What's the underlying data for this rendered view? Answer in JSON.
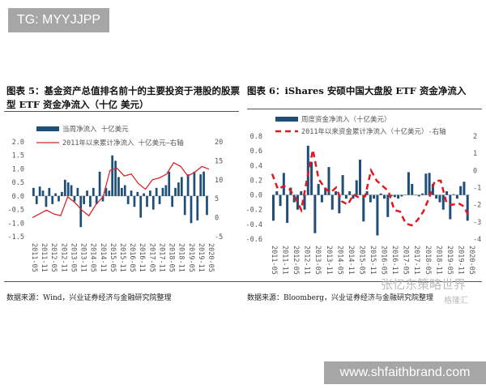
{
  "tag": "TG: MYYJJPP",
  "watermark_site": "www.shfaithbrand.com",
  "watermark_wechat": "张忆东策略世界",
  "watermark_logo": "格隆汇",
  "left": {
    "title": "图表 5：基金资产总值排名前十的主要投资于港股的股票型 ETF 资金净流入（十亿 美元）",
    "source": "数据来源：Wind，兴业证券经济与金融研究院整理"
  },
  "right": {
    "title": "图表 6：iShares 安硕中国大盘股 ETF 资金净流入",
    "source": "数据来源：Bloomberg，兴业证券经济与金融研究院整理"
  },
  "chart_data": [
    {
      "type": "bar+line",
      "x_ticks": [
        "2011-05",
        "2011-11",
        "2012-05",
        "2012-11",
        "2013-05",
        "2013-11",
        "2014-05",
        "2014-11",
        "2015-05",
        "2015-11",
        "2016-05",
        "2016-11",
        "2017-05",
        "2017-11",
        "2018-05",
        "2018-11",
        "2019-05",
        "2019-11",
        "2020-05"
      ],
      "y_left": {
        "ticks": [
          "2.0",
          "1.5",
          "1.0",
          "0.5",
          "0.0",
          "-0.5",
          "-1.0",
          "-1.5"
        ],
        "range": [
          -1.5,
          2.0
        ]
      },
      "y_right": {
        "ticks": [
          "20",
          "15",
          "10",
          "5",
          "0",
          "-5"
        ],
        "range": [
          -5,
          20
        ]
      },
      "bar_color": "#1f4e79",
      "line_color": "#d9262a",
      "legend_bar": "当周净流入  十亿美元",
      "legend_line": "2011年以来累计净流入  十亿美元—右轴",
      "bars": [
        0.3,
        -0.3,
        0.35,
        0.2,
        -0.4,
        0.3,
        -0.3,
        0.1,
        -0.2,
        0.15,
        0.6,
        0.5,
        0.4,
        -0.2,
        0.3,
        -1.15,
        -0.3,
        0.2,
        -0.4,
        0.3,
        -0.3,
        0.9,
        -0.2,
        0.3,
        0.2,
        1.5,
        1.3,
        0.7,
        0.3,
        0.4,
        -0.3,
        0.2,
        -0.4,
        0.15,
        -0.8,
        0.1,
        -0.4,
        0.2,
        -0.5,
        0.3,
        -0.3,
        0.3,
        0.4,
        0.9,
        -0.4,
        0.3,
        0.5,
        0.7,
        -0.7,
        0.8,
        -1.0,
        0.9,
        -0.9,
        0.8,
        0.9,
        -0.7
      ],
      "line": [
        0,
        1,
        2,
        1,
        0.5,
        5.5,
        4,
        2,
        0.5,
        3.5,
        5.5,
        12.5,
        13,
        11,
        11.5,
        9,
        7.5,
        10,
        10.5,
        11.5,
        14.5,
        13.5,
        11,
        12,
        13.5,
        12.8
      ]
    },
    {
      "type": "bar+line",
      "x_ticks": [
        "2011-05",
        "2011-11",
        "2012-05",
        "2012-11",
        "2013-05",
        "2013-11",
        "2014-05",
        "2014-11",
        "2015-05",
        "2015-11",
        "2016-05",
        "2016-11",
        "2017-05",
        "2017-11",
        "2018-05",
        "2018-11",
        "2019-05",
        "2019-11",
        "2020-05"
      ],
      "y_left": {
        "ticks": [
          "0.8",
          "0.6",
          "0.4",
          "0.2",
          "0.0",
          "-0.2",
          "-0.4",
          "-0.6"
        ],
        "range": [
          -0.6,
          0.8
        ]
      },
      "y_right": {
        "ticks": [
          "2",
          "1",
          "0",
          "-1",
          "-2",
          "-3",
          "-4"
        ],
        "range": [
          -4,
          2
        ]
      },
      "bar_color": "#1f4e79",
      "line_color": "#e0191f",
      "legend_bar": "周度资金净流入（十亿美元）",
      "legend_line": "2011年以来资金累计净流入（十亿美元）-右轴",
      "bars": [
        -0.35,
        0.05,
        -0.15,
        0.3,
        -0.38,
        0.1,
        -0.1,
        -0.2,
        0.05,
        -0.2,
        0.67,
        0.45,
        -0.52,
        0.15,
        -0.1,
        0.1,
        0.38,
        -0.2,
        0.05,
        -0.25,
        0.27,
        -0.05,
        0.05,
        -0.05,
        0.2,
        0.48,
        -0.36,
        0.05,
        -0.1,
        -0.05,
        -0.55,
        0.02,
        -0.05,
        -0.3,
        -0.02,
        -0.03,
        -0.05,
        -0.02,
        0.0,
        0.31,
        0.15,
        0.0,
        -0.02,
        0.02,
        0.29,
        0.3,
        0.15,
        -0.05,
        -0.1,
        -0.2,
        0.05,
        -0.33,
        0.01,
        -0.05,
        0.12,
        0.18,
        -0.35
      ],
      "line": [
        -0.2,
        -1.1,
        -0.9,
        -1.1,
        -1.6,
        -2.3,
        -0.5,
        1.2,
        -0.5,
        -1.0,
        -1.3,
        -1.0,
        -1.8,
        -2.0,
        -1.4,
        -1.6,
        -1.5,
        0.0,
        -0.6,
        -0.9,
        -1.2,
        -2.3,
        -2.4,
        -3.1,
        -3.2,
        -2.9,
        -2.4,
        -1.6,
        -0.6,
        -0.6,
        -1.9,
        -2.0,
        -1.9,
        -2.1,
        -2.8
      ]
    }
  ]
}
